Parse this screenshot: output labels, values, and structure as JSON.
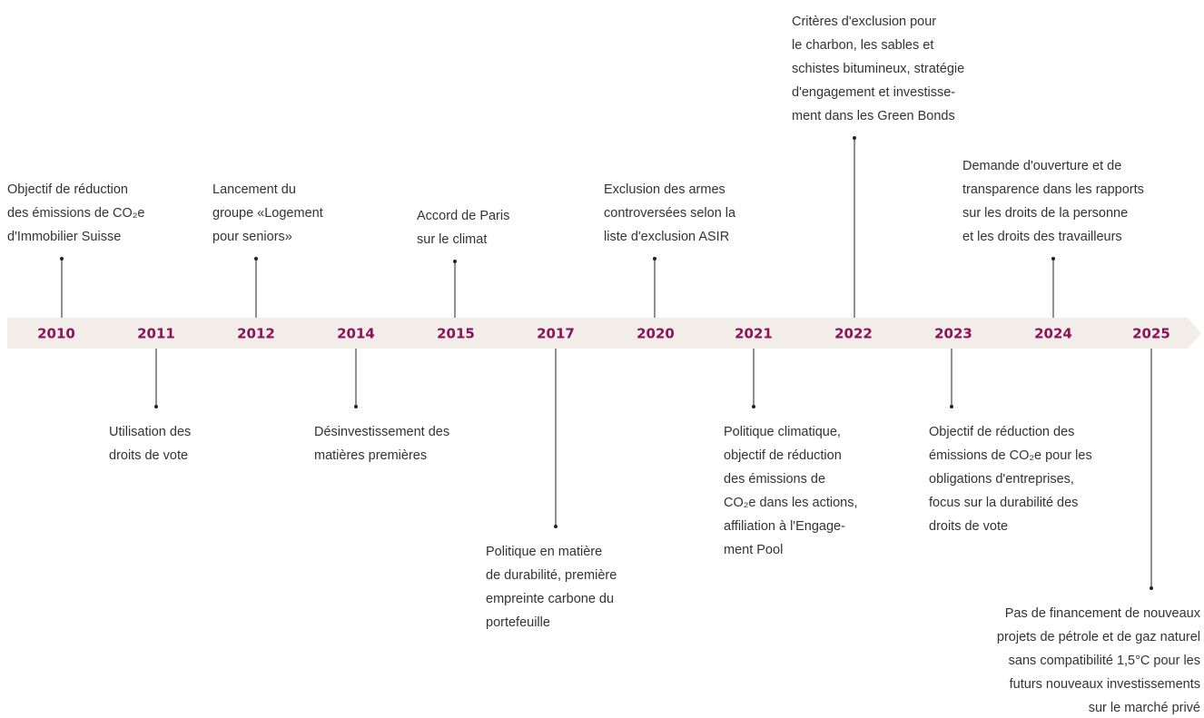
{
  "timeline": {
    "years": [
      "2010",
      "2011",
      "2012",
      "2014",
      "2015",
      "2017",
      "2020",
      "2021",
      "2022",
      "2023",
      "2024",
      "2025"
    ],
    "events": [
      {
        "year": "2010",
        "lines": [
          "Objectif de réduction",
          "des émissions de CO₂e",
          "d'Immobilier Suisse"
        ]
      },
      {
        "year": "2011",
        "lines": [
          "Utilisation des",
          "droits de vote"
        ]
      },
      {
        "year": "2012",
        "lines": [
          "Lancement du",
          "groupe «Logement",
          "pour seniors»"
        ]
      },
      {
        "year": "2014",
        "lines": [
          "Désinvestissement des",
          "matières premières"
        ]
      },
      {
        "year": "2015",
        "lines": [
          "Accord de Paris",
          "sur le climat"
        ]
      },
      {
        "year": "2017",
        "lines": [
          "Politique en matière",
          "de durabilité, première",
          "empreinte carbone du",
          "portefeuille"
        ]
      },
      {
        "year": "2020",
        "lines": [
          "Exclusion des armes",
          "controversées selon la",
          "liste d'exclusion ASIR"
        ]
      },
      {
        "year": "2021",
        "lines": [
          "Politique climatique,",
          "objectif de réduction",
          "des émissions de",
          "CO₂e dans les actions,",
          "affiliation à l'Engage-",
          "ment Pool"
        ]
      },
      {
        "year": "2022",
        "lines": [
          "Critères d'exclusion pour",
          "le charbon, les sables et",
          "schistes bitumineux, stratégie",
          "d'engagement et investisse-",
          "ment dans les Green Bonds"
        ]
      },
      {
        "year": "2023",
        "lines": [
          "Objectif de réduction des",
          "émissions de CO₂e pour les",
          "obligations d'entreprises,",
          "focus sur la durabilité des",
          "droits de vote"
        ]
      },
      {
        "year": "2024",
        "lines": [
          "Demande d'ouverture et de",
          "transparence dans les rapports",
          "sur les droits de la personne",
          "et les droits des travailleurs"
        ]
      },
      {
        "year": "2025",
        "lines": [
          "Pas de financement de nouveaux",
          "projets de pétrole et de gaz naturel",
          "sans compatibilité 1,5°C pour les",
          "futurs nouveaux investissements",
          "sur le marché privé"
        ]
      }
    ]
  }
}
